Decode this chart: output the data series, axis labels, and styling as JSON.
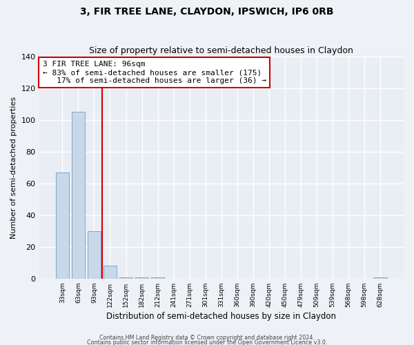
{
  "title": "3, FIR TREE LANE, CLAYDON, IPSWICH, IP6 0RB",
  "subtitle": "Size of property relative to semi-detached houses in Claydon",
  "xlabel": "Distribution of semi-detached houses by size in Claydon",
  "ylabel": "Number of semi-detached properties",
  "categories": [
    "33sqm",
    "63sqm",
    "93sqm",
    "122sqm",
    "152sqm",
    "182sqm",
    "212sqm",
    "241sqm",
    "271sqm",
    "301sqm",
    "331sqm",
    "360sqm",
    "390sqm",
    "420sqm",
    "450sqm",
    "479sqm",
    "509sqm",
    "539sqm",
    "568sqm",
    "598sqm",
    "628sqm"
  ],
  "values": [
    67,
    105,
    30,
    8,
    1,
    1,
    1,
    0,
    0,
    0,
    0,
    0,
    0,
    0,
    0,
    0,
    0,
    0,
    0,
    0,
    1
  ],
  "bar_color": "#c8d8e8",
  "bar_edge_color": "#7aaac8",
  "vline_x": 2.5,
  "vline_color": "#cc0000",
  "annotation_text": "3 FIR TREE LANE: 96sqm\n← 83% of semi-detached houses are smaller (175)\n   17% of semi-detached houses are larger (36) →",
  "annotation_box_color": "#ffffff",
  "annotation_box_edge_color": "#cc0000",
  "ylim": [
    0,
    140
  ],
  "yticks": [
    0,
    20,
    40,
    60,
    80,
    100,
    120,
    140
  ],
  "bg_color": "#e8eef4",
  "grid_color": "#ffffff",
  "title_fontsize": 10,
  "subtitle_fontsize": 9,
  "footer_line1": "Contains HM Land Registry data © Crown copyright and database right 2024.",
  "footer_line2": "Contains public sector information licensed under the Open Government Licence v3.0."
}
